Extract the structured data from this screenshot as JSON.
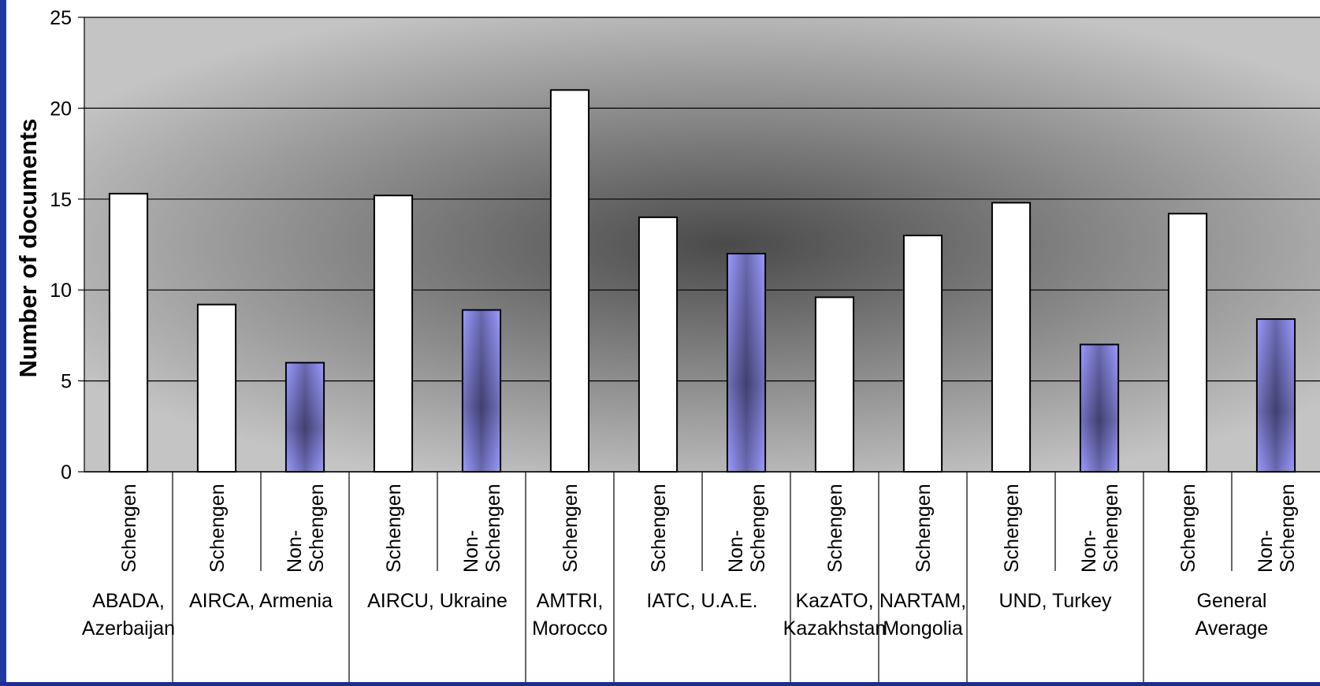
{
  "colors": {
    "frame": "#1a2f8f",
    "plot_light": "#c4c4c4",
    "plot_dark": "#4a4a4a",
    "schengen_fill": "#ffffff",
    "non_schengen_fill": "#9a9aff",
    "non_schengen_core": "#40406e",
    "gridline": "#000000"
  },
  "chart_data": {
    "type": "bar",
    "title": "",
    "xlabel": "",
    "ylabel": "Number of documents",
    "ylim": [
      0,
      25
    ],
    "yticks": [
      0,
      5,
      10,
      15,
      20,
      25
    ],
    "grid": true,
    "groups": [
      {
        "label": "ABADA, Azerbaijan",
        "label_lines": [
          "ABADA,",
          "Azerbaijan"
        ],
        "bars": [
          {
            "category": "Schengen",
            "label_lines": [
              "Schengen"
            ],
            "value": 15.3
          }
        ]
      },
      {
        "label": "AIRCA, Armenia",
        "label_lines": [
          "AIRCA, Armenia"
        ],
        "bars": [
          {
            "category": "Schengen",
            "label_lines": [
              "Schengen"
            ],
            "value": 9.2
          },
          {
            "category": "Non-Schengen",
            "label_lines": [
              "Non-",
              "Schengen"
            ],
            "value": 6
          }
        ]
      },
      {
        "label": "AIRCU, Ukraine",
        "label_lines": [
          "AIRCU, Ukraine"
        ],
        "bars": [
          {
            "category": "Schengen",
            "label_lines": [
              "Schengen"
            ],
            "value": 15.2
          },
          {
            "category": "Non-Schengen",
            "label_lines": [
              "Non-",
              "Schengen"
            ],
            "value": 8.9
          }
        ]
      },
      {
        "label": "AMTRI, Morocco",
        "label_lines": [
          "AMTRI,",
          "Morocco"
        ],
        "bars": [
          {
            "category": "Schengen",
            "label_lines": [
              "Schengen"
            ],
            "value": 21
          }
        ]
      },
      {
        "label": "IATC, U.A.E.",
        "label_lines": [
          "IATC, U.A.E."
        ],
        "bars": [
          {
            "category": "Schengen",
            "label_lines": [
              "Schengen"
            ],
            "value": 14
          },
          {
            "category": "Non-Schengen",
            "label_lines": [
              "Non-",
              "Schengen"
            ],
            "value": 12
          }
        ]
      },
      {
        "label": "KazATO, Kazakhstan",
        "label_lines": [
          "KazATO,",
          "Kazakhstan"
        ],
        "bars": [
          {
            "category": "Schengen",
            "label_lines": [
              "Schengen"
            ],
            "value": 9.6
          }
        ]
      },
      {
        "label": "NARTAM, Mongolia",
        "label_lines": [
          "NARTAM,",
          "Mongolia"
        ],
        "bars": [
          {
            "category": "Schengen",
            "label_lines": [
              "Schengen"
            ],
            "value": 13
          }
        ]
      },
      {
        "label": "UND, Turkey",
        "label_lines": [
          "UND, Turkey"
        ],
        "bars": [
          {
            "category": "Schengen",
            "label_lines": [
              "Schengen"
            ],
            "value": 14.8
          },
          {
            "category": "Non-Schengen",
            "label_lines": [
              "Non-",
              "Schengen"
            ],
            "value": 7
          }
        ]
      },
      {
        "label": "General Average",
        "label_lines": [
          "General",
          "Average"
        ],
        "bars": [
          {
            "category": "Schengen",
            "label_lines": [
              "Schengen"
            ],
            "value": 14.2
          },
          {
            "category": "Non-Schengen",
            "label_lines": [
              "Non-",
              "Schengen"
            ],
            "value": 8.4
          }
        ]
      }
    ]
  }
}
